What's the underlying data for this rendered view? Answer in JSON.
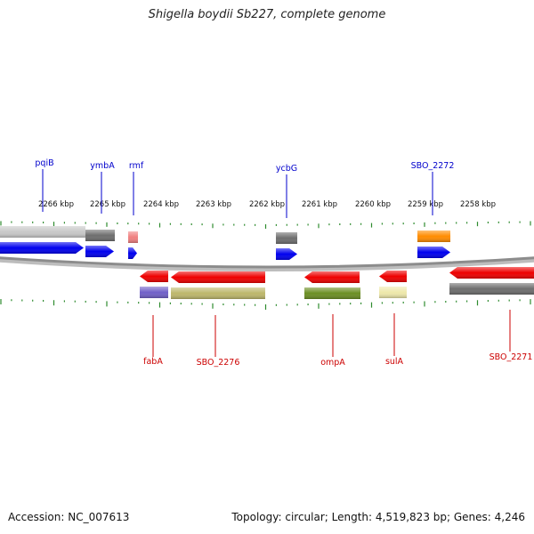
{
  "title": "Shigella boydii Sb227, complete genome",
  "footer": {
    "accession": "Accession: NC_007613",
    "stats": "Topology: circular; Length: 4,519,823 bp; Genes: 4,246"
  },
  "colors": {
    "forward_label": "#0000cc",
    "reverse_label": "#cc0000",
    "tick": "#2e8b2e",
    "backbone": "#8c8c8c"
  },
  "scale_labels": [
    "2266 kbp",
    "2265 kbp",
    "2264 kbp",
    "2263 kbp",
    "2262 kbp",
    "2261 kbp",
    "2260 kbp",
    "2259 kbp",
    "2258 kbp"
  ],
  "forward_genes": [
    {
      "name": "pqiB",
      "label": "pqiB",
      "arrow_color": "#0000ee",
      "feature_color": "#c8c8c8"
    },
    {
      "name": "ymbA",
      "label": "ymbA",
      "arrow_color": "#0000ee",
      "feature_color": "#6e6e6e"
    },
    {
      "name": "rmf",
      "label": "rmf",
      "arrow_color": "#0000ee",
      "feature_color": "#f08080"
    },
    {
      "name": "ycbG",
      "label": "ycbG",
      "arrow_color": "#0000ee",
      "feature_color": "#6e6e6e"
    },
    {
      "name": "SBO_2272",
      "label": "SBO_2272",
      "arrow_color": "#0000ee",
      "feature_color": "#ff8c00"
    }
  ],
  "reverse_genes": [
    {
      "name": "fabA",
      "label": "fabA",
      "arrow_color": "#ee0000",
      "feature_color": "#7060c8"
    },
    {
      "name": "SBO_2276",
      "label": "SBO_2276",
      "arrow_color": "#ee0000",
      "feature_color": "#bdb76b"
    },
    {
      "name": "ompA",
      "label": "ompA",
      "arrow_color": "#ee0000",
      "feature_color": "#6b8e23"
    },
    {
      "name": "sulA",
      "label": "sulA",
      "arrow_color": "#ee0000",
      "feature_color": "#eee8aa"
    },
    {
      "name": "SBO_2271",
      "label": "SBO_2271",
      "arrow_color": "#ee0000",
      "feature_color": "#6e6e6e"
    }
  ]
}
